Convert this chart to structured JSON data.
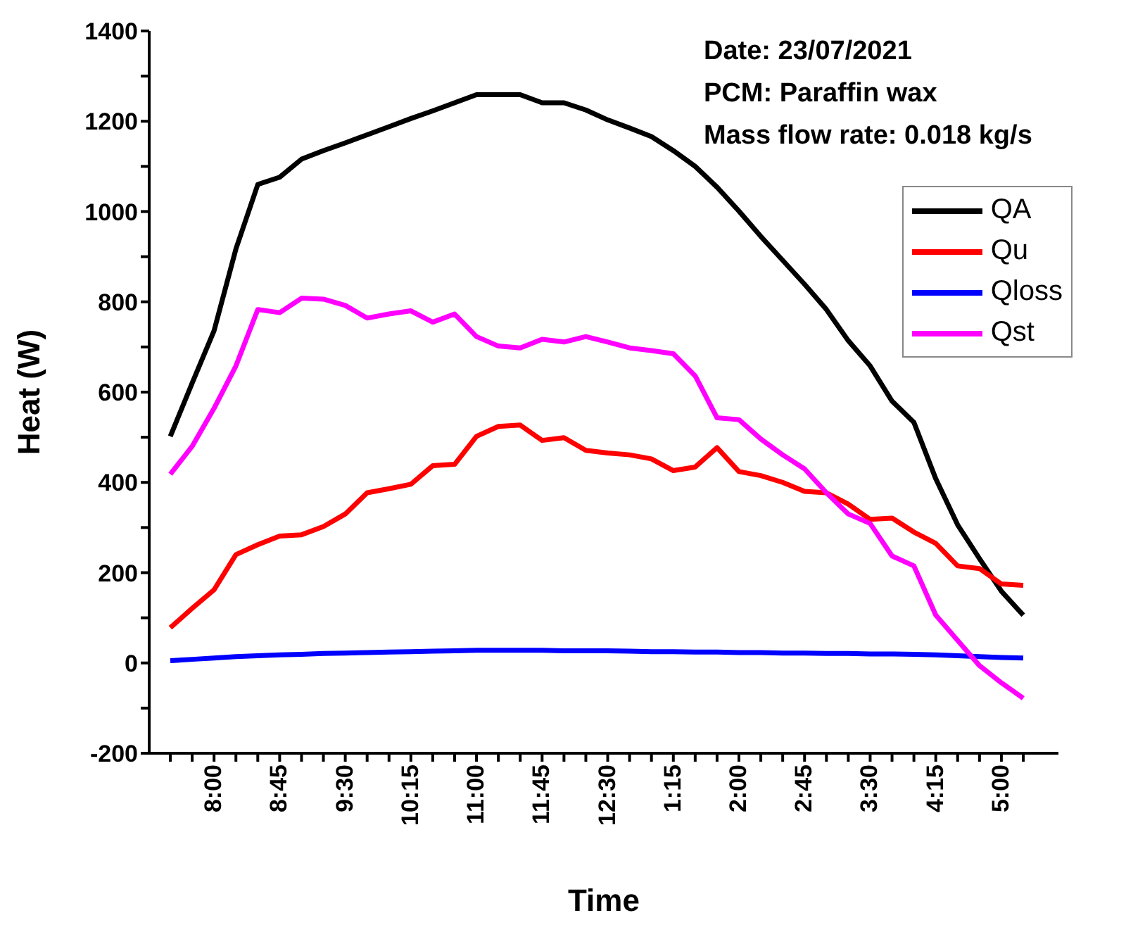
{
  "chart_data": {
    "type": "line",
    "xlabel": "Time",
    "ylabel": "Heat (W)",
    "annotations": [
      "Date: 23/07/2021",
      "PCM: Paraffin wax",
      "Mass flow rate: 0.018 kg/s"
    ],
    "categories": [
      null,
      null,
      "8:00",
      null,
      null,
      "8:45",
      null,
      null,
      "9:30",
      null,
      null,
      "10:15",
      null,
      null,
      "11:00",
      null,
      null,
      "11:45",
      null,
      null,
      "12:30",
      null,
      null,
      "1:15",
      null,
      null,
      "2:00",
      null,
      null,
      "2:45",
      null,
      null,
      "3:30",
      null,
      null,
      "4:15",
      null,
      null,
      "5:00",
      null
    ],
    "series": [
      {
        "name": "QA",
        "color": "#000000",
        "values": [
          502,
          620,
          736,
          917,
          1060,
          1076,
          1116,
          1135,
          1152,
          1170,
          1188,
          1206,
          1223,
          1241,
          1259,
          1259,
          1259,
          1241,
          1241,
          1225,
          1203,
          1185,
          1166,
          1135,
          1100,
          1054,
          1001,
          945,
          892,
          839,
          783,
          714,
          658,
          580,
          533,
          408,
          306,
          231,
          159,
          106
        ]
      },
      {
        "name": "Qu",
        "color": "#ff0000",
        "values": [
          78,
          121,
          162,
          240,
          262,
          281,
          284,
          302,
          330,
          377,
          386,
          396,
          437,
          440,
          502,
          524,
          527,
          493,
          499,
          471,
          465,
          461,
          452,
          426,
          434,
          477,
          424,
          415,
          400,
          380,
          377,
          352,
          318,
          321,
          290,
          265,
          215,
          209,
          175,
          172
        ]
      },
      {
        "name": "Qloss",
        "color": "#0000ff",
        "values": [
          5,
          8,
          11,
          14,
          16,
          18,
          19,
          21,
          22,
          23,
          24,
          25,
          26,
          27,
          28,
          28,
          28,
          28,
          27,
          27,
          27,
          26,
          25,
          25,
          24,
          24,
          23,
          23,
          22,
          22,
          21,
          21,
          20,
          20,
          19,
          18,
          16,
          14,
          12,
          11
        ]
      },
      {
        "name": "Qst",
        "color": "#ff00ff",
        "values": [
          418,
          480,
          564,
          658,
          783,
          776,
          808,
          806,
          792,
          764,
          773,
          780,
          755,
          773,
          723,
          702,
          698,
          717,
          711,
          723,
          711,
          698,
          692,
          685,
          636,
          543,
          539,
          496,
          461,
          430,
          377,
          330,
          309,
          237,
          215,
          106,
          50,
          -6,
          -44,
          -78
        ]
      }
    ],
    "ylim": [
      -200,
      1400
    ],
    "yticks": [
      -200,
      {
        "value": -100,
        "label": null
      },
      0,
      {
        "value": 100,
        "label": null
      },
      200,
      {
        "value": 300,
        "label": null
      },
      400,
      {
        "value": 500,
        "label": null
      },
      600,
      {
        "value": 700,
        "label": null
      },
      800,
      {
        "value": 900,
        "label": null
      },
      1000,
      {
        "value": 1100,
        "label": null
      },
      1200,
      {
        "value": 1300,
        "label": null
      },
      1400
    ],
    "grid": false,
    "legend": "top right",
    "marker": "none",
    "line_style": "solid"
  }
}
